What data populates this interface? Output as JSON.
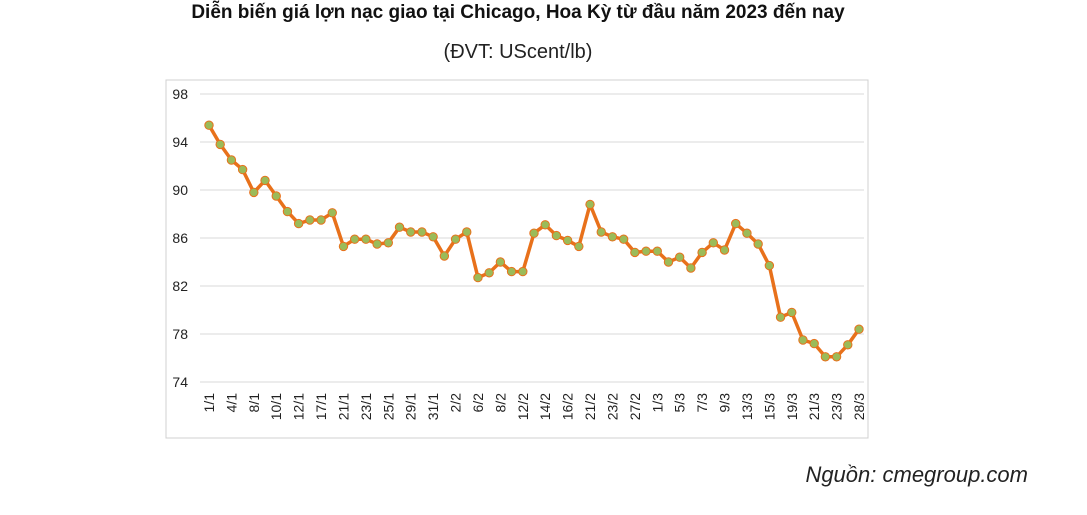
{
  "chart_data": {
    "type": "line",
    "title": "Diễn biến giá lợn nạc giao tại Chicago, Hoa Kỳ từ đầu năm 2023 đến nay",
    "subtitle": "(ĐVT: UScent/lb)",
    "source": "Nguồn: cmegroup.com",
    "categories": [
      "1/1",
      null,
      "4/1",
      null,
      "8/1",
      null,
      "10/1",
      null,
      "12/1",
      null,
      "17/1",
      null,
      "21/1",
      null,
      "23/1",
      null,
      "25/1",
      null,
      "29/1",
      null,
      "31/1",
      null,
      "2/2",
      null,
      "6/2",
      null,
      "8/2",
      null,
      "12/2",
      null,
      "14/2",
      null,
      "16/2",
      null,
      "21/2",
      null,
      "23/2",
      null,
      "27/2",
      null,
      "1/3",
      null,
      "5/3",
      null,
      "7/3",
      null,
      "9/3",
      null,
      "13/3",
      null,
      "15/3",
      null,
      "19/3",
      null,
      "21/3",
      null,
      "23/3",
      null,
      "28/3"
    ],
    "series": [
      {
        "color": "#e8711b",
        "marker_color": "#9bbb59",
        "values": [
          95.4,
          93.8,
          92.5,
          91.7,
          89.8,
          90.8,
          89.5,
          88.2,
          87.2,
          87.5,
          87.5,
          88.1,
          85.3,
          85.9,
          85.9,
          85.5,
          85.6,
          86.9,
          86.5,
          86.5,
          86.1,
          84.5,
          85.9,
          86.5,
          82.7,
          83.1,
          84.0,
          83.2,
          83.2,
          86.4,
          87.1,
          86.2,
          85.8,
          85.3,
          88.8,
          86.5,
          86.1,
          85.9,
          84.8,
          84.9,
          84.9,
          84.0,
          84.4,
          83.5,
          84.8,
          85.6,
          85.0,
          87.2,
          86.4,
          85.5,
          83.7,
          79.4,
          79.8,
          77.5,
          77.2,
          76.1,
          76.1,
          77.1,
          78.4
        ]
      }
    ],
    "ylim": [
      74,
      98
    ],
    "yticks": [
      74,
      78,
      82,
      86,
      90,
      94,
      98
    ],
    "grid": true
  }
}
